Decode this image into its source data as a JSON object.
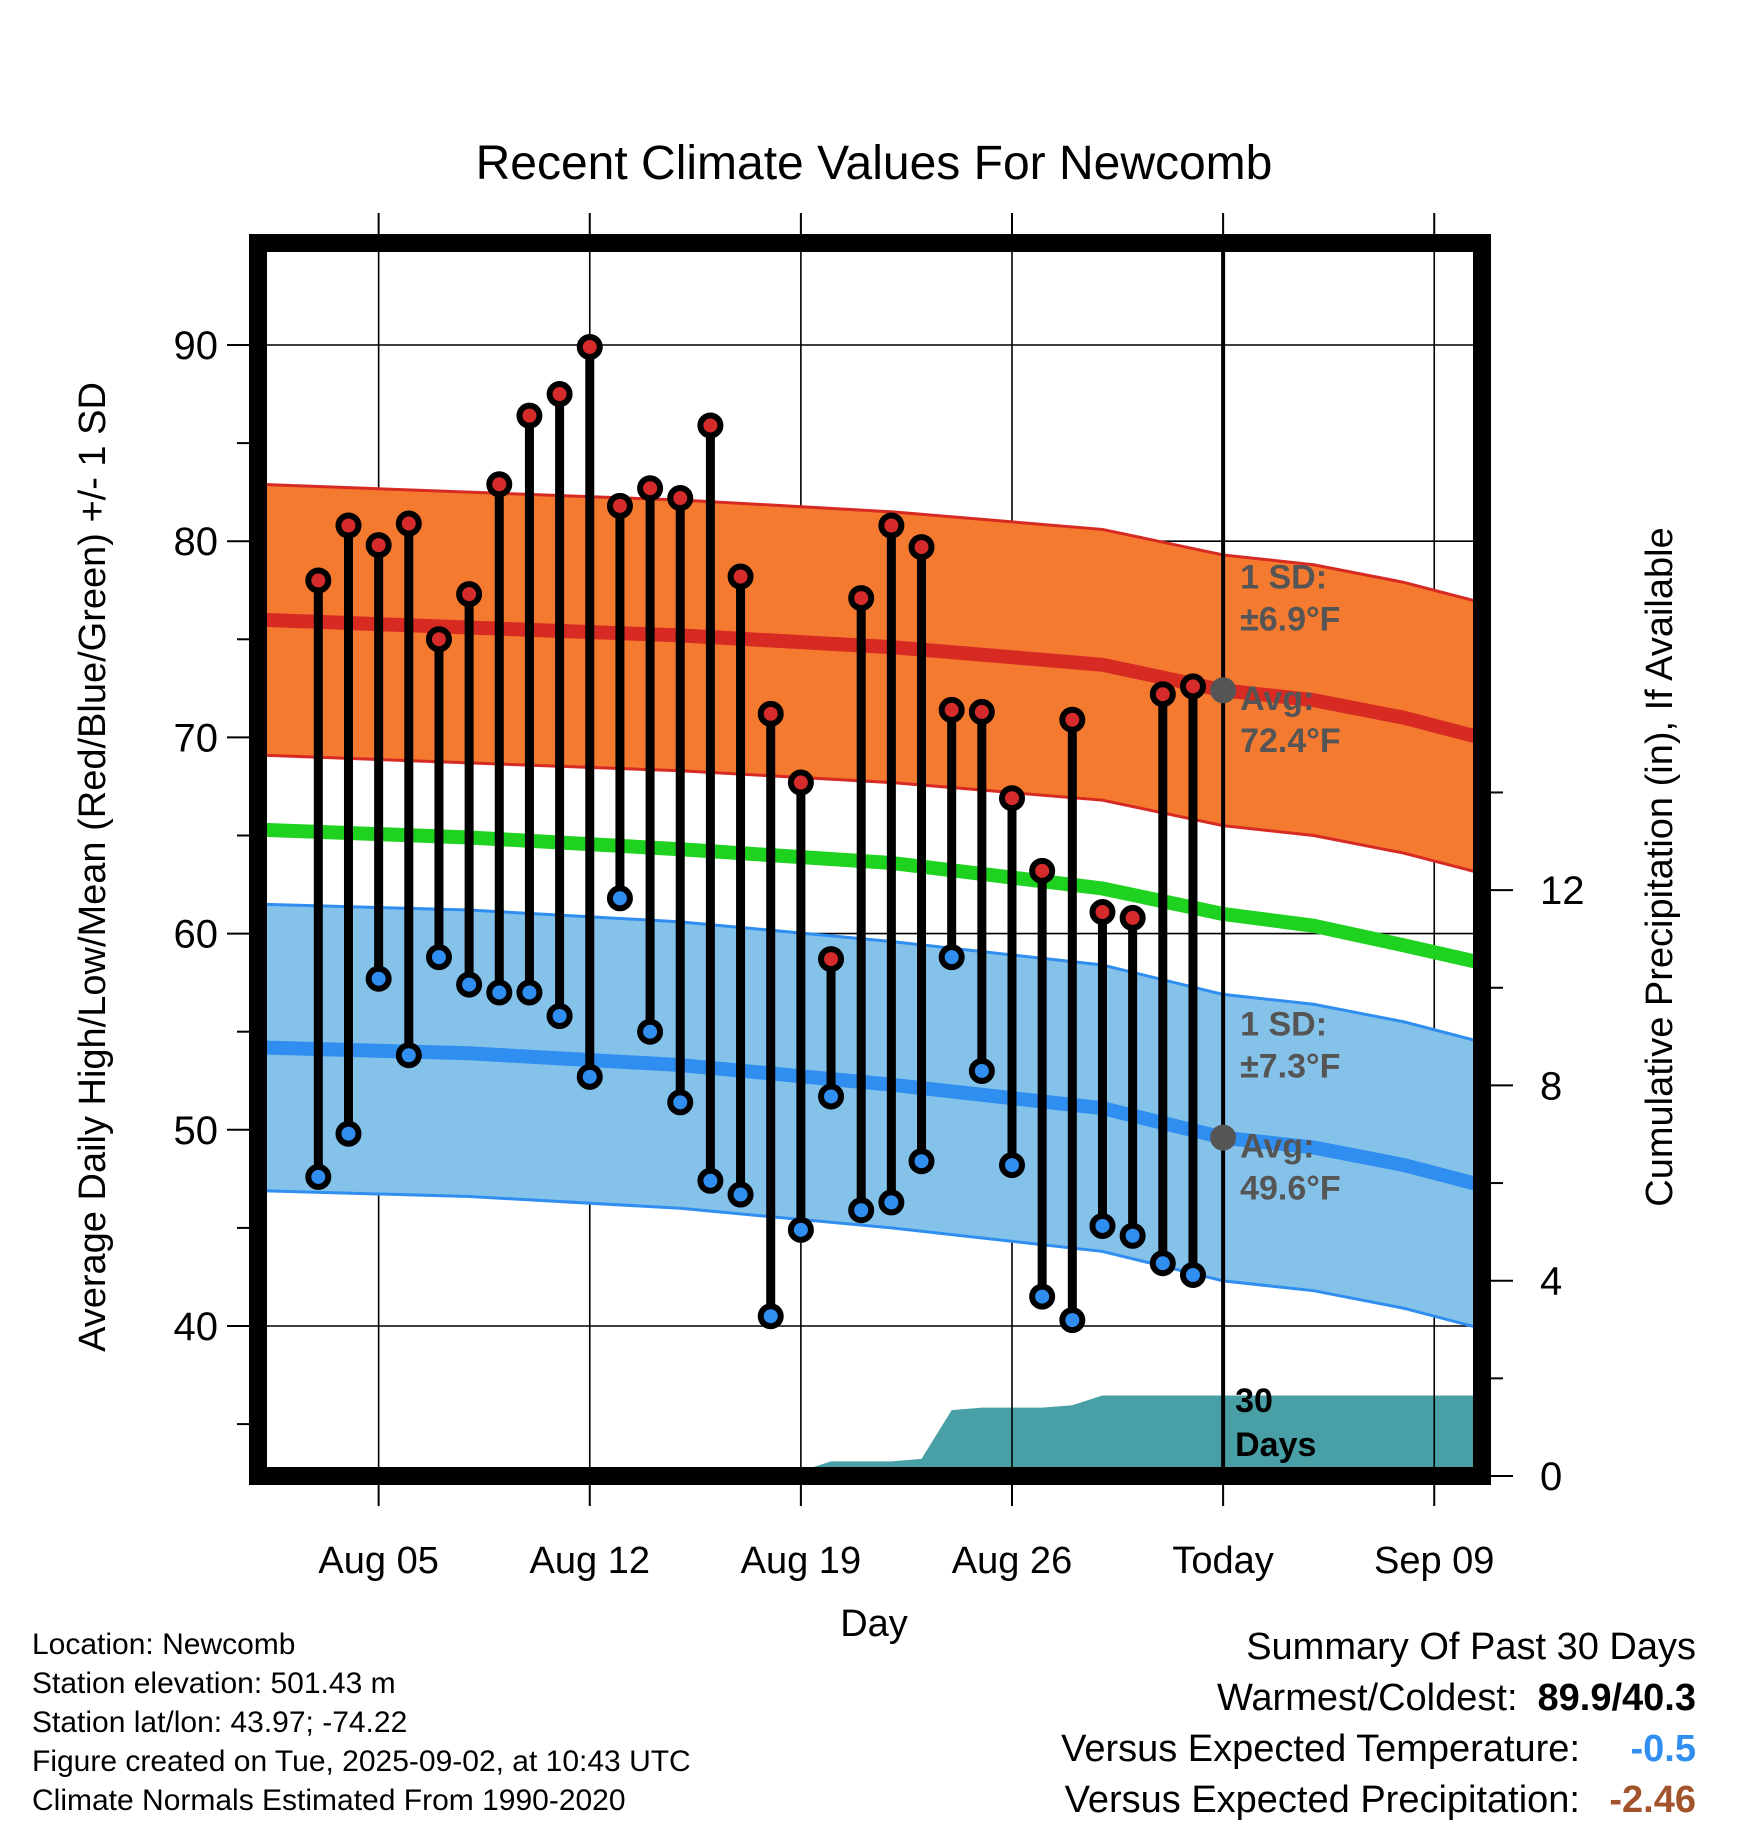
{
  "chart_data": {
    "type": "line",
    "title": "Recent Climate Values For Newcomb",
    "xlabel": "Day",
    "ylabel": "Average Daily High/Low/Mean (Red/Blue/Green) +/- 1 SD",
    "y2label": "Cumulative Precipitation (in), If Available",
    "ylim": [
      33,
      95
    ],
    "y2lim": [
      0,
      30
    ],
    "xlim": [
      "Aug 01",
      "Sep 12"
    ],
    "grid": true,
    "x_ticks": [
      {
        "date": "Aug 05",
        "label": "Aug 05"
      },
      {
        "date": "Aug 12",
        "label": "Aug 12"
      },
      {
        "date": "Aug 19",
        "label": "Aug 19"
      },
      {
        "date": "Aug 26",
        "label": "Aug 26"
      },
      {
        "date": "Sep 02",
        "label": "Today"
      },
      {
        "date": "Sep 09",
        "label": "Sep 09"
      }
    ],
    "y_ticks": [
      40,
      50,
      60,
      70,
      80,
      90
    ],
    "y2_ticks": [
      0,
      4,
      8,
      12
    ],
    "today": "Sep 02",
    "period_label": "30 Days",
    "normals": {
      "dates": [
        "Aug 01",
        "Aug 08",
        "Aug 15",
        "Aug 22",
        "Aug 29",
        "Sep 02",
        "Sep 05",
        "Sep 08",
        "Sep 12"
      ],
      "high_avg": [
        76.0,
        75.6,
        75.2,
        74.6,
        73.7,
        72.4,
        71.9,
        71.0,
        69.4
      ],
      "low_avg": [
        54.2,
        53.9,
        53.3,
        52.3,
        51.1,
        49.6,
        49.1,
        48.2,
        46.6
      ],
      "mean_avg": [
        65.3,
        64.9,
        64.3,
        63.6,
        62.3,
        61.0,
        60.4,
        59.4,
        58.0
      ],
      "high_sd": 6.9,
      "low_sd": 7.3
    },
    "annotations": [
      {
        "line1": "1 SD:",
        "line2": "±6.9°F"
      },
      {
        "line1": "Avg:",
        "line2": "72.4°F"
      },
      {
        "line1": "1 SD:",
        "line2": "±7.3°F"
      },
      {
        "line1": "Avg:",
        "line2": "49.6°F"
      }
    ],
    "observed": {
      "dates": [
        "Aug 03",
        "Aug 04",
        "Aug 05",
        "Aug 06",
        "Aug 07",
        "Aug 08",
        "Aug 09",
        "Aug 10",
        "Aug 11",
        "Aug 12",
        "Aug 13",
        "Aug 14",
        "Aug 15",
        "Aug 16",
        "Aug 17",
        "Aug 18",
        "Aug 19",
        "Aug 20",
        "Aug 21",
        "Aug 22",
        "Aug 23",
        "Aug 24",
        "Aug 25",
        "Aug 26",
        "Aug 27",
        "Aug 28",
        "Aug 29",
        "Aug 30",
        "Aug 31",
        "Sep 01"
      ],
      "high": [
        78.0,
        80.8,
        79.8,
        80.9,
        75.0,
        77.3,
        82.9,
        86.4,
        87.5,
        89.9,
        81.8,
        82.7,
        82.2,
        85.9,
        78.2,
        71.2,
        67.7,
        58.7,
        77.1,
        80.8,
        79.7,
        71.4,
        71.3,
        66.9,
        63.2,
        70.9,
        61.1,
        60.8,
        72.2,
        72.6
      ],
      "low": [
        47.6,
        49.8,
        57.7,
        53.8,
        58.8,
        57.4,
        57.0,
        57.0,
        55.8,
        52.7,
        61.8,
        55.0,
        51.4,
        47.4,
        46.7,
        40.5,
        44.9,
        51.7,
        45.9,
        46.3,
        48.4,
        58.8,
        53.0,
        48.2,
        41.5,
        40.3,
        45.1,
        44.6,
        43.2,
        42.6
      ]
    },
    "precip": {
      "dates": [
        "Aug 01",
        "Aug 04",
        "Aug 05",
        "Aug 06",
        "Aug 19",
        "Aug 20",
        "Aug 22",
        "Aug 23",
        "Aug 24",
        "Aug 25",
        "Aug 27",
        "Aug 28",
        "Aug 29",
        "Sep 02",
        "Sep 12"
      ],
      "cumulative": [
        0.0,
        0.0,
        0.05,
        0.1,
        0.1,
        0.3,
        0.3,
        0.35,
        1.35,
        1.4,
        1.4,
        1.45,
        1.65,
        1.65,
        1.65
      ]
    },
    "colors": {
      "high_band": "#f47a30",
      "high_band_edge": "#d62a23",
      "high_avg": "#d62a23",
      "low_band": "#85c2e9",
      "low_band_edge": "#2f8ef0",
      "low_avg": "#2f8ef0",
      "mean_avg": "#1fd21f",
      "precip": "#489fa5",
      "high_dot": "#d52b2b",
      "low_dot": "#2f8ef0",
      "annotation": "#555555",
      "below_normal": "#2f8ef0",
      "precip_deficit": "#a3532b"
    }
  },
  "info": {
    "location": "Location: Newcomb",
    "elevation": "Station elevation: 501.43 m",
    "latlon": "Station lat/lon: 43.97; -74.22",
    "created": "Figure created on Tue, 2025-09-02, at 10:43 UTC",
    "normals": "Climate Normals Estimated From 1990-2020"
  },
  "summary": {
    "title": "Summary Of Past 30 Days",
    "warmest_coldest_label": "Warmest/Coldest:",
    "warmest_coldest_value": "89.9/40.3",
    "temp_label": "Versus Expected Temperature:",
    "temp_value": "-0.5",
    "precip_label": "Versus Expected Precipitation:",
    "precip_value": "-2.46"
  }
}
